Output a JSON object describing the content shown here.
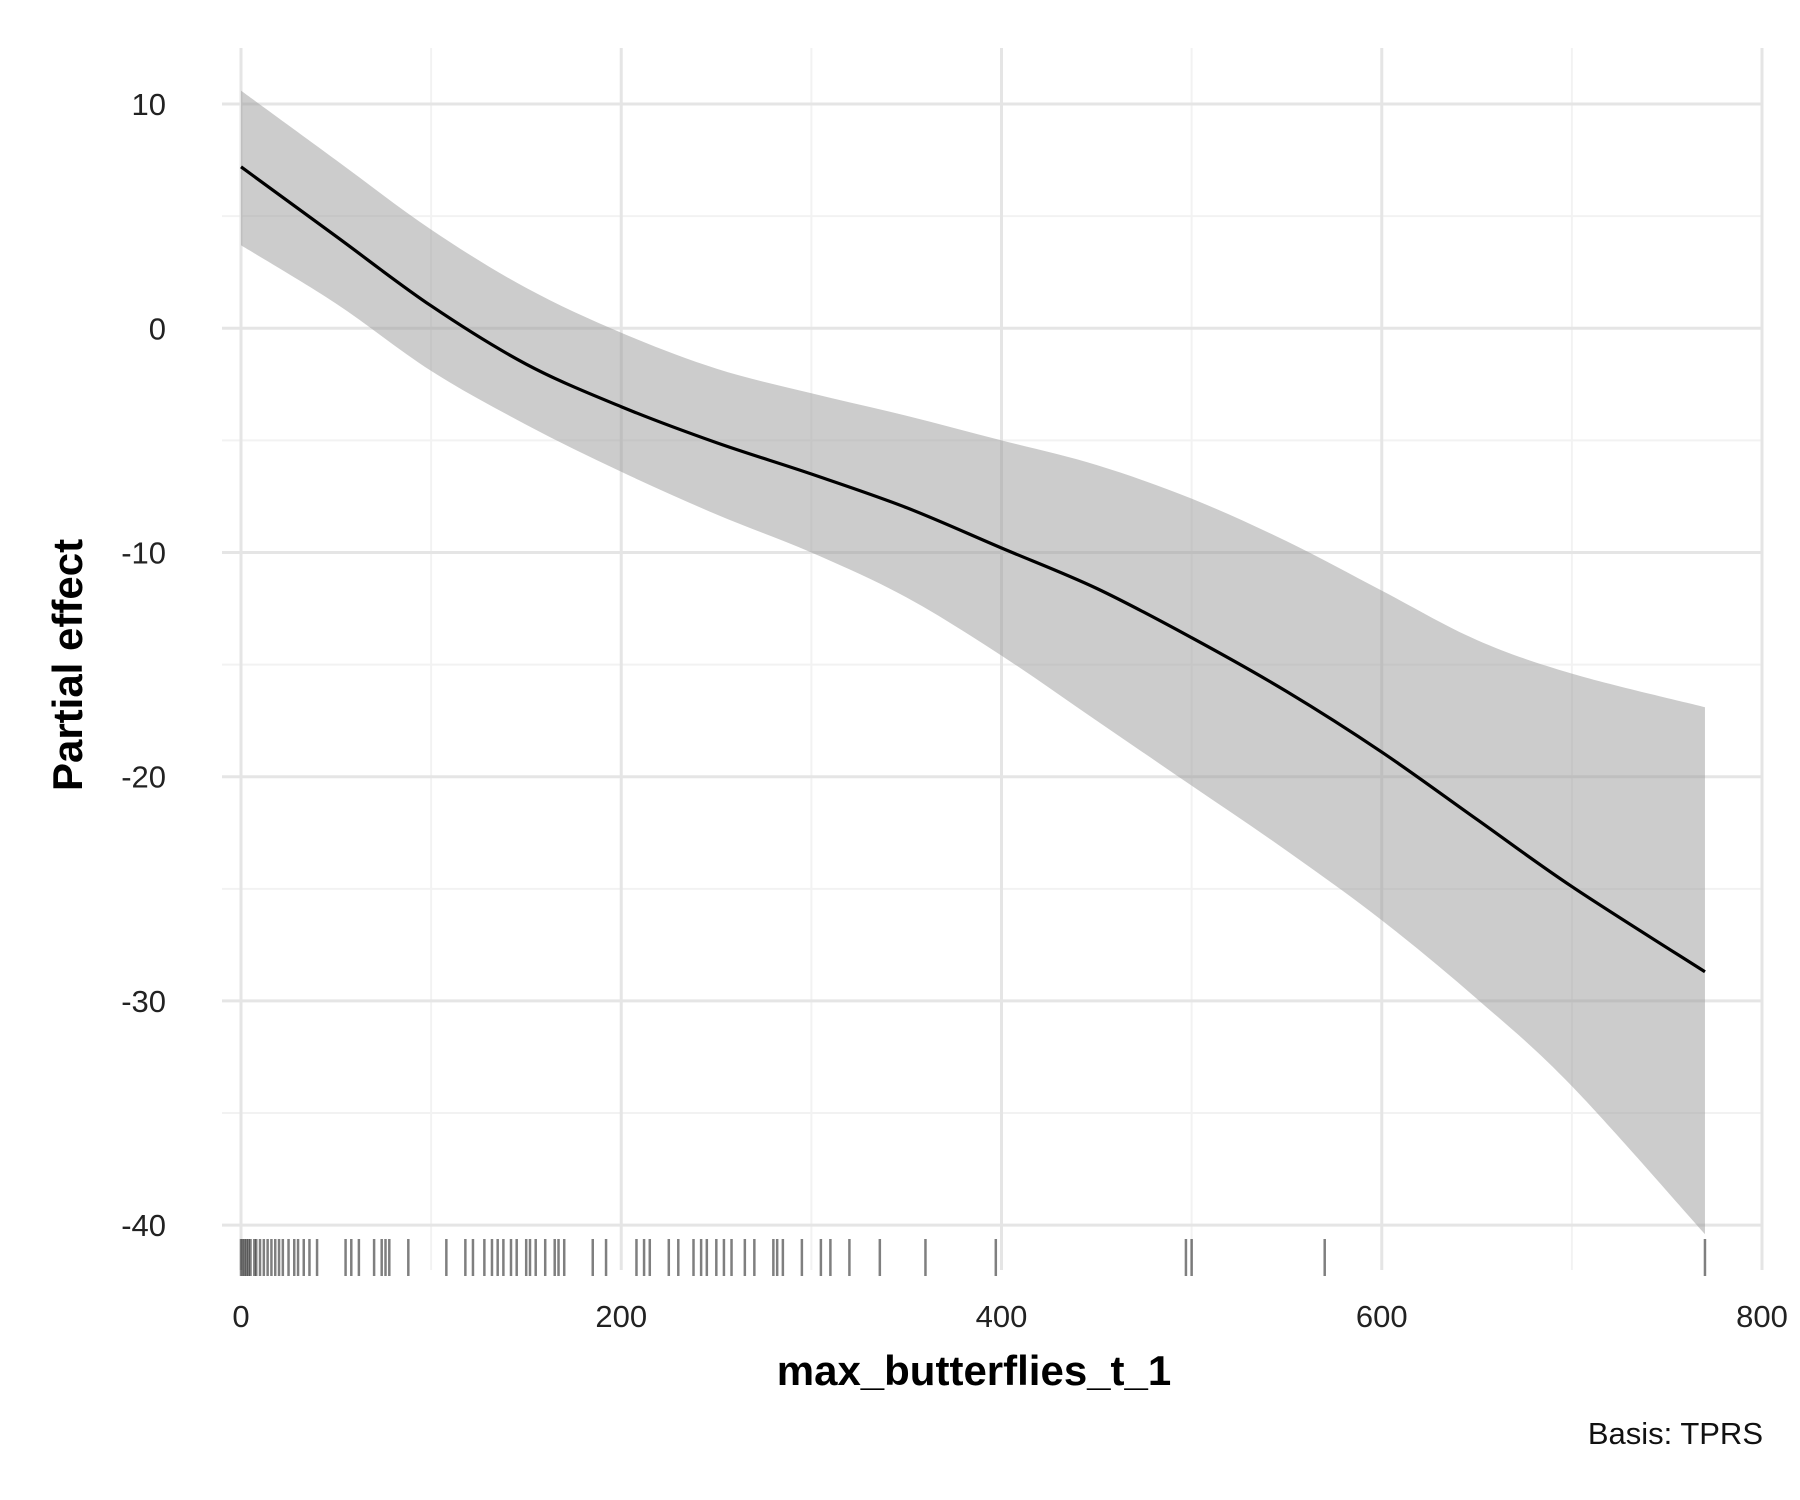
{
  "chart_data": {
    "type": "line",
    "title": "",
    "xlabel": "max_butterflies_t_1",
    "ylabel": "Partial effect",
    "caption": "Basis: TPRS",
    "xlim": [
      -10,
      800
    ],
    "ylim": [
      -42,
      12.5
    ],
    "x_ticks": [
      0,
      200,
      400,
      600,
      800
    ],
    "x_tick_labels": [
      "0",
      "200",
      "400",
      "600",
      "800"
    ],
    "y_ticks": [
      10,
      0,
      -10,
      -20,
      -30,
      -40
    ],
    "y_tick_labels": [
      "10",
      "0",
      "-10",
      "-20",
      "-30",
      "-40"
    ],
    "grid": true,
    "legend": "none",
    "colors": {
      "line": "#000000",
      "band": "#999999",
      "rug": "#000000"
    },
    "series": [
      {
        "kind": "estimate",
        "x": [
          0,
          50,
          100,
          150,
          200,
          250,
          300,
          350,
          400,
          450,
          500,
          550,
          600,
          650,
          700,
          770
        ],
        "y": [
          7.2,
          4.1,
          1.0,
          -1.6,
          -3.5,
          -5.1,
          -6.5,
          -8.0,
          -9.8,
          -11.6,
          -13.8,
          -16.2,
          -18.9,
          -21.9,
          -24.9,
          -28.7
        ]
      },
      {
        "kind": "confidence_band",
        "x": [
          0,
          50,
          100,
          150,
          200,
          250,
          300,
          350,
          400,
          450,
          500,
          550,
          600,
          650,
          700,
          770
        ],
        "upper": [
          10.6,
          7.5,
          4.4,
          1.8,
          -0.2,
          -1.8,
          -2.9,
          -3.9,
          -5.0,
          -6.1,
          -7.6,
          -9.5,
          -11.7,
          -13.9,
          -15.4,
          -16.9
        ],
        "lower": [
          3.7,
          1.1,
          -1.9,
          -4.3,
          -6.4,
          -8.3,
          -10.0,
          -12.0,
          -14.6,
          -17.5,
          -20.4,
          -23.3,
          -26.4,
          -29.9,
          -33.8,
          -40.4
        ]
      }
    ],
    "rug": [
      0,
      1,
      2,
      3,
      4,
      5,
      7,
      8,
      10,
      12,
      14,
      16,
      18,
      20,
      22,
      25,
      28,
      30,
      33,
      36,
      40,
      55,
      58,
      62,
      70,
      74,
      76,
      78,
      88,
      108,
      118,
      122,
      128,
      132,
      135,
      138,
      142,
      145,
      150,
      152,
      155,
      160,
      165,
      167,
      170,
      185,
      192,
      208,
      212,
      215,
      225,
      230,
      238,
      242,
      245,
      250,
      254,
      258,
      265,
      270,
      280,
      282,
      285,
      295,
      305,
      310,
      320,
      336,
      360,
      397,
      497,
      500,
      570,
      770
    ]
  }
}
